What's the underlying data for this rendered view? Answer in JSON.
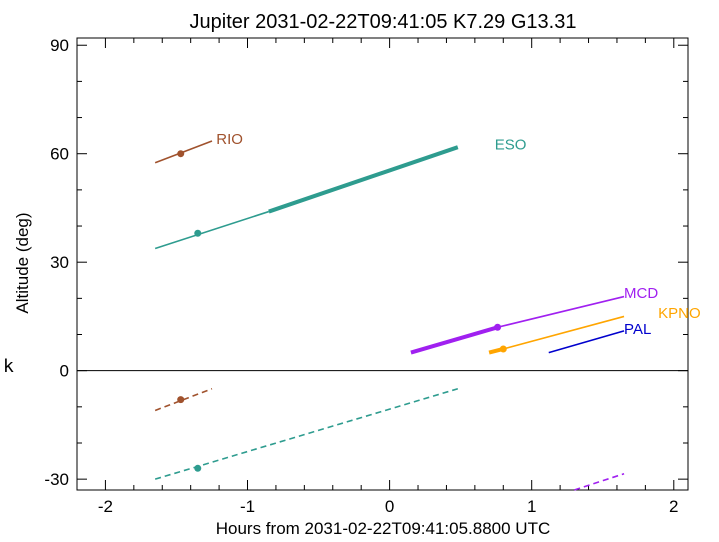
{
  "chart_data": {
    "type": "line",
    "title": "Jupiter 2031-02-22T09:41:05  K7.29  G13.31",
    "xlabel": "Hours from 2031-02-22T09:41:05.8800 UTC",
    "ylabel": "Altitude (deg)",
    "xlim": [
      -2.2,
      2.1
    ],
    "ylim": [
      -33,
      92
    ],
    "xticks": [
      -2,
      -1,
      0,
      1,
      2
    ],
    "yticks": [
      -30,
      0,
      30,
      60,
      90
    ],
    "stray_label": "k",
    "colors": {
      "RIO": "#a0522d",
      "ESO": "#2e9c8f",
      "MCD": "#a020f0",
      "KPNO": "#ffa500",
      "PAL": "#0000cd"
    },
    "series": [
      {
        "name": "RIO",
        "color": "#a0522d",
        "label_xy": [
          -1.22,
          64
        ],
        "thin": [
          [
            -1.65,
            57.5
          ],
          [
            -1.25,
            63.5
          ]
        ],
        "thick": null,
        "marker": [
          -1.47,
          60
        ],
        "dashed": [
          [
            -1.65,
            -11
          ],
          [
            -1.25,
            -5
          ]
        ],
        "dashed_marker": [
          -1.47,
          -8
        ]
      },
      {
        "name": "ESO",
        "color": "#2e9c8f",
        "label_xy": [
          0.74,
          62.5
        ],
        "thin": [
          [
            -1.65,
            33.8
          ],
          [
            -0.85,
            44
          ]
        ],
        "thick": [
          [
            -0.85,
            44
          ],
          [
            0.48,
            61.8
          ]
        ],
        "marker": [
          -1.35,
          38
        ],
        "dashed": [
          [
            -1.65,
            -30
          ],
          [
            0.48,
            -5
          ]
        ],
        "dashed_marker": [
          -1.35,
          -27
        ]
      },
      {
        "name": "MCD",
        "color": "#a020f0",
        "label_xy": [
          1.65,
          21.5
        ],
        "thin": [
          [
            0.76,
            12
          ],
          [
            1.65,
            20.5
          ]
        ],
        "thick": [
          [
            0.15,
            5
          ],
          [
            0.76,
            12
          ]
        ],
        "marker": [
          0.76,
          12
        ],
        "dashed": [
          [
            1.3,
            -33
          ],
          [
            1.65,
            -28.5
          ]
        ],
        "dashed_marker": null
      },
      {
        "name": "KPNO",
        "color": "#ffa500",
        "label_xy": [
          1.89,
          16
        ],
        "thin": [
          [
            0.8,
            6
          ],
          [
            1.65,
            15
          ]
        ],
        "thick": [
          [
            0.7,
            5
          ],
          [
            0.8,
            6
          ]
        ],
        "marker": [
          0.8,
          6
        ],
        "dashed": null,
        "dashed_marker": null
      },
      {
        "name": "PAL",
        "color": "#0000cd",
        "label_xy": [
          1.65,
          11.5
        ],
        "thin": [
          [
            1.12,
            5
          ],
          [
            1.65,
            11
          ]
        ],
        "thick": null,
        "marker": null,
        "dashed": null,
        "dashed_marker": null
      }
    ]
  }
}
